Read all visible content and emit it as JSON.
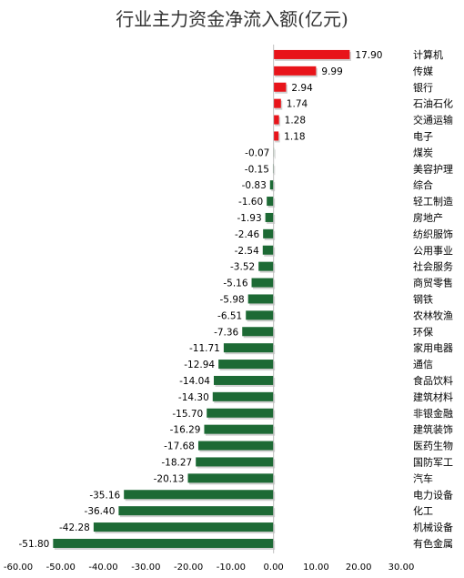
{
  "chart_data": {
    "type": "bar",
    "orientation": "horizontal",
    "title": "行业主力资金净流入额(亿元)",
    "xlabel": "",
    "ylabel": "",
    "xlim": [
      -60,
      30
    ],
    "xticks": [
      "-60.00",
      "-50.00",
      "-40.00",
      "-30.00",
      "-20.00",
      "-10.00",
      "0.00",
      "10.00",
      "20.00",
      "30.00"
    ],
    "grid": false,
    "legend": "none",
    "positive_color": "#e8141a",
    "negative_color": "#1d6a35",
    "categories": [
      "计算机",
      "传媒",
      "银行",
      "石油石化",
      "交通运输",
      "电子",
      "煤炭",
      "美容护理",
      "综合",
      "轻工制造",
      "房地产",
      "纺织服饰",
      "公用事业",
      "社会服务",
      "商贸零售",
      "钢铁",
      "农林牧渔",
      "环保",
      "家用电器",
      "通信",
      "食品饮料",
      "建筑材料",
      "非银金融",
      "建筑装饰",
      "医药生物",
      "国防军工",
      "汽车",
      "电力设备",
      "化工",
      "机械设备",
      "有色金属"
    ],
    "values": [
      17.9,
      9.99,
      2.94,
      1.74,
      1.28,
      1.18,
      -0.07,
      -0.15,
      -0.83,
      -1.6,
      -1.93,
      -2.46,
      -2.54,
      -3.52,
      -5.16,
      -5.98,
      -6.51,
      -7.36,
      -11.71,
      -12.94,
      -14.04,
      -14.3,
      -15.7,
      -16.29,
      -17.68,
      -18.27,
      -20.13,
      -35.16,
      -36.4,
      -42.28,
      -51.8
    ],
    "value_labels": [
      "17.90",
      "9.99",
      "2.94",
      "1.74",
      "1.28",
      "1.18",
      "-0.07",
      "-0.15",
      "-0.83",
      "-1.60",
      "-1.93",
      "-2.46",
      "-2.54",
      "-3.52",
      "-5.16",
      "-5.98",
      "-6.51",
      "-7.36",
      "-11.71",
      "-12.94",
      "-14.04",
      "-14.30",
      "-15.70",
      "-16.29",
      "-17.68",
      "-18.27",
      "-20.13",
      "-35.16",
      "-36.40",
      "-42.28",
      "-51.80"
    ]
  }
}
